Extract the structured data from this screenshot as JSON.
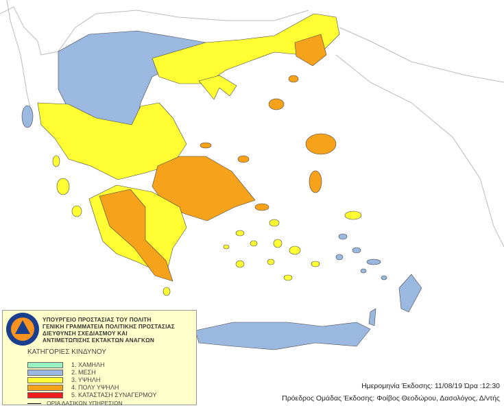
{
  "logo": {
    "text_top": "ΠΟΛΙΤΙΚΗ ΠΡΟΣΤΑΣΙΑ",
    "text_bottom": "ΕΛΛΑΔΑ"
  },
  "organization": [
    "ΥΠΟΥΡΓΕΙΟ ΠΡΟΣΤΑΣΙΑΣ ΤΟΥ ΠΟΛΙΤΗ",
    "ΓΕΝΙΚΗ ΓΡΑΜΜΑΤΕΙΑ ΠΟΛΙΤΙΚΗΣ ΠΡΟΣΤΑΣΙΑΣ",
    "ΔΙΕΥΘΥΝΣΗ ΣΧΕΔΙΑΣΜΟΥ ΚΑΙ",
    "ΑΝΤΙΜΕΤΩΠΙΣΗΣ ΕΚΤΑΚΤΩΝ ΑΝΑΓΚΩΝ"
  ],
  "legend": {
    "title": "ΚΑΤΗΓΟΡΙΕΣ ΚΙΝΔΥΝΟΥ",
    "categories": [
      {
        "label": "1. ΧΑΜΗΛΗ",
        "color": "#99f0c0"
      },
      {
        "label": "2. ΜΕΣΗ",
        "color": "#9ab8e0"
      },
      {
        "label": "3. ΥΨΗΛΗ",
        "color": "#ffff33"
      },
      {
        "label": "4. ΠΟΛΥ ΥΨΗΛΗ",
        "color": "#f7a21b"
      },
      {
        "label": "5. ΚΑΤΑΣΤΑΣΗ ΣΥΝΑΓΕΡΜΟΥ",
        "color": "#ee1c1c"
      }
    ],
    "border_label": "ΟΡΙΑ ΔΑΣΙΚΩΝ ΥΠΗΡΕΣΙΩΝ"
  },
  "footer": {
    "issue_date": "Ημερομηνία Έκδοσης: 11/08/19  Ώρα :12:30",
    "issuer": "Πρόεδρος Ομάδας Έκδοσης: Φοίβος Θεοδώρου,  Δασολόγος, Δ/ντής"
  }
}
